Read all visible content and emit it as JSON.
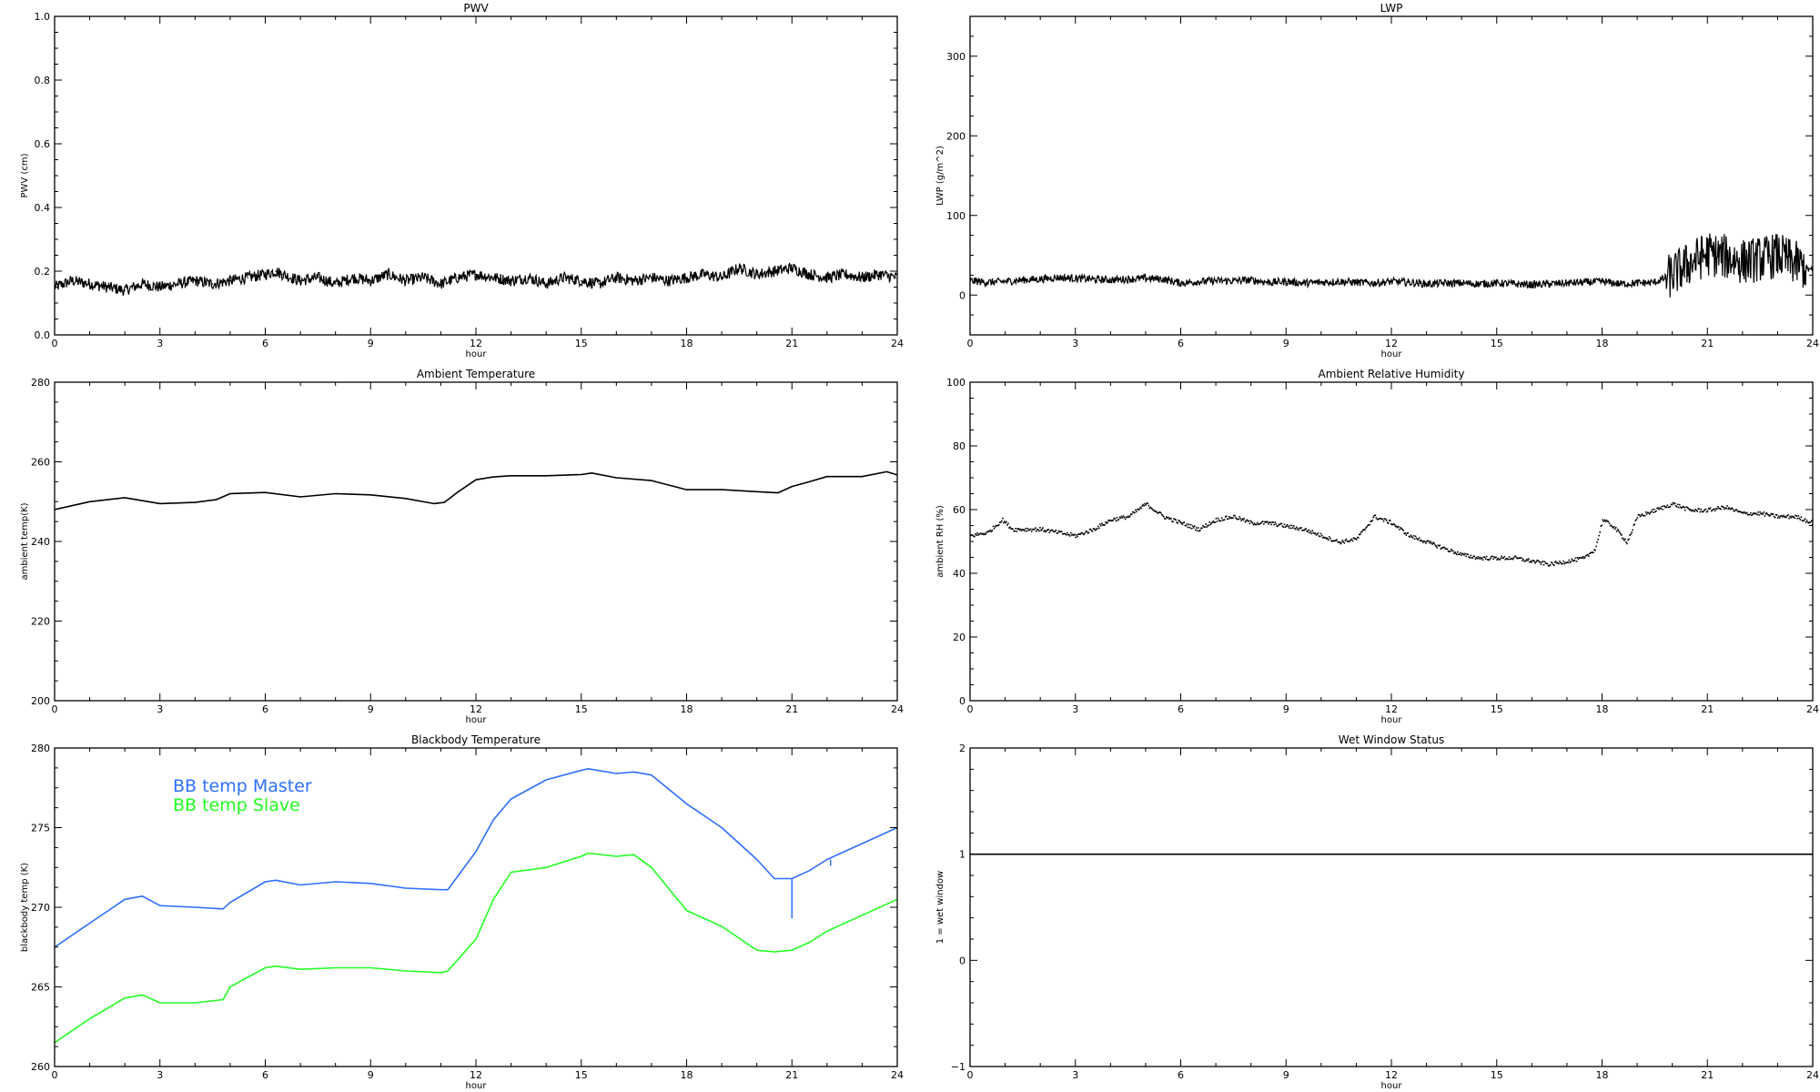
{
  "chart_data": [
    {
      "type": "line",
      "title": "PWV",
      "xlabel": "hour",
      "ylabel": "PWV (cm)",
      "xlim": [
        0,
        24
      ],
      "ylim": [
        0.0,
        1.0
      ],
      "xticks": [
        0,
        3,
        6,
        9,
        12,
        15,
        18,
        21,
        24
      ],
      "xtick_labels": [
        "0",
        "3",
        "6",
        "9",
        "12",
        "15",
        "18",
        "21",
        "24"
      ],
      "yticks": [
        0.0,
        0.2,
        0.4,
        0.6,
        0.8,
        1.0
      ],
      "ytick_labels": [
        "0.0",
        "0.2",
        "0.4",
        "0.6",
        "0.8",
        "1.0"
      ],
      "series": [
        {
          "color": "#000000",
          "style": "noisy",
          "x": [
            0,
            0.5,
            1,
            1.5,
            2,
            2.5,
            3,
            3.5,
            4,
            4.5,
            5,
            5.5,
            6,
            6.3,
            6.5,
            7,
            7.5,
            8,
            8.5,
            9,
            9.5,
            10,
            10.5,
            11,
            11.5,
            12,
            12.5,
            13,
            13.5,
            14,
            14.5,
            15,
            15.5,
            16,
            16.5,
            17,
            17.5,
            18,
            18.5,
            19,
            19.5,
            20,
            20.5,
            21,
            21.5,
            22,
            22.5,
            23,
            23.5,
            24
          ],
          "y": [
            0.15,
            0.17,
            0.16,
            0.15,
            0.14,
            0.16,
            0.15,
            0.16,
            0.17,
            0.16,
            0.17,
            0.18,
            0.19,
            0.2,
            0.19,
            0.17,
            0.18,
            0.16,
            0.18,
            0.17,
            0.19,
            0.17,
            0.18,
            0.16,
            0.18,
            0.19,
            0.18,
            0.17,
            0.18,
            0.16,
            0.18,
            0.17,
            0.16,
            0.18,
            0.17,
            0.18,
            0.17,
            0.18,
            0.19,
            0.18,
            0.21,
            0.19,
            0.2,
            0.21,
            0.19,
            0.18,
            0.19,
            0.18,
            0.19,
            0.18
          ]
        }
      ]
    },
    {
      "type": "line",
      "title": "LWP",
      "xlabel": "hour",
      "ylabel": "LWP (g/m^2)",
      "xlim": [
        0,
        24
      ],
      "ylim": [
        -50,
        350
      ],
      "xticks": [
        0,
        3,
        6,
        9,
        12,
        15,
        18,
        21,
        24
      ],
      "xtick_labels": [
        "0",
        "3",
        "6",
        "9",
        "12",
        "15",
        "18",
        "21",
        "24"
      ],
      "yticks": [
        0,
        100,
        200,
        300
      ],
      "ytick_labels": [
        "0",
        "100",
        "200",
        "300"
      ],
      "series": [
        {
          "color": "#000000",
          "style": "noisy",
          "x": [
            0,
            0.5,
            1,
            1.5,
            2,
            2.5,
            3,
            3.5,
            4,
            4.5,
            5,
            5.5,
            6,
            6.5,
            7,
            7.5,
            8,
            8.5,
            9,
            9.5,
            10,
            10.5,
            11,
            11.5,
            12,
            12.5,
            13,
            13.5,
            14,
            14.5,
            15,
            15.5,
            16,
            16.5,
            17,
            17.5,
            18,
            18.5,
            19,
            19.5,
            20,
            20.5,
            21,
            21.5,
            22,
            22.5,
            23,
            23.5,
            24
          ],
          "y": [
            18,
            16,
            17,
            19,
            20,
            22,
            21,
            20,
            19,
            20,
            21,
            20,
            15,
            17,
            18,
            18,
            19,
            16,
            17,
            15,
            16,
            17,
            16,
            15,
            17,
            16,
            14,
            15,
            15,
            14,
            15,
            14,
            13,
            14,
            15,
            16,
            17,
            14,
            15,
            16,
            25,
            40,
            52,
            48,
            42,
            45,
            50,
            40,
            30
          ]
        }
      ]
    },
    {
      "type": "line",
      "title": "Ambient Temperature",
      "xlabel": "hour",
      "ylabel": "ambient temp(K)",
      "xlim": [
        0,
        24
      ],
      "ylim": [
        200,
        280
      ],
      "xticks": [
        0,
        3,
        6,
        9,
        12,
        15,
        18,
        21,
        24
      ],
      "xtick_labels": [
        "0",
        "3",
        "6",
        "9",
        "12",
        "15",
        "18",
        "21",
        "24"
      ],
      "yticks": [
        200,
        220,
        240,
        260,
        280
      ],
      "ytick_labels": [
        "200",
        "220",
        "240",
        "260",
        "280"
      ],
      "series": [
        {
          "color": "#000000",
          "style": "line",
          "x": [
            0,
            1,
            2,
            3,
            4,
            4.6,
            5,
            6,
            7,
            8,
            9,
            10,
            10.8,
            11.1,
            11.5,
            12,
            12.5,
            13,
            14,
            15,
            15.3,
            16,
            17,
            18,
            19,
            20,
            20.6,
            21,
            21.5,
            22,
            23,
            23.7,
            24
          ],
          "y": [
            248,
            250,
            251,
            249.5,
            249.8,
            250.5,
            252,
            252.3,
            251.2,
            252,
            251.7,
            250.8,
            249.5,
            249.8,
            252.5,
            255.5,
            256.2,
            256.5,
            256.5,
            256.8,
            257.2,
            256,
            255.3,
            253,
            253,
            252.5,
            252.2,
            253.8,
            255,
            256.3,
            256.3,
            257.5,
            256.7
          ]
        }
      ]
    },
    {
      "type": "scatter",
      "title": "Ambient Relative Humidity",
      "xlabel": "hour",
      "ylabel": "ambient RH (%)",
      "xlim": [
        0,
        24
      ],
      "ylim": [
        0,
        100
      ],
      "xticks": [
        0,
        3,
        6,
        9,
        12,
        15,
        18,
        21,
        24
      ],
      "xtick_labels": [
        "0",
        "3",
        "6",
        "9",
        "12",
        "15",
        "18",
        "21",
        "24"
      ],
      "yticks": [
        0,
        20,
        40,
        60,
        80,
        100
      ],
      "ytick_labels": [
        "0",
        "20",
        "40",
        "60",
        "80",
        "100"
      ],
      "series": [
        {
          "color": "#000000",
          "style": "dots",
          "x": [
            0,
            0.5,
            0.9,
            1.2,
            2,
            2.5,
            3,
            3.5,
            4,
            4.5,
            5,
            5.5,
            6,
            6.5,
            7,
            7.5,
            8,
            8.5,
            9,
            9.5,
            10,
            10.5,
            11,
            11.5,
            12,
            12.5,
            13,
            13.5,
            14,
            14.5,
            15,
            15.5,
            16,
            16.5,
            17,
            17.5,
            17.8,
            18,
            18.3,
            18.7,
            19,
            19.5,
            20,
            20.5,
            21,
            21.5,
            22,
            22.5,
            23,
            23.5,
            24
          ],
          "y": [
            52,
            53,
            57,
            54,
            54,
            53,
            52,
            54,
            57,
            58,
            62,
            58,
            56,
            54,
            57,
            58,
            56,
            56,
            55,
            54,
            52,
            50,
            51,
            58,
            56,
            52,
            50,
            48,
            46,
            45,
            45,
            45,
            44,
            43,
            44,
            45,
            48,
            57,
            55,
            50,
            58,
            60,
            62,
            60,
            60,
            61,
            59,
            59,
            58,
            58,
            56
          ]
        }
      ]
    },
    {
      "type": "line",
      "title": "Blackbody Temperature",
      "xlabel": "hour",
      "ylabel": "blackbody temp (K)",
      "xlim": [
        0,
        24
      ],
      "ylim": [
        260,
        280
      ],
      "xticks": [
        0,
        3,
        6,
        9,
        12,
        15,
        18,
        21,
        24
      ],
      "xtick_labels": [
        "0",
        "3",
        "6",
        "9",
        "12",
        "15",
        "18",
        "21",
        "24"
      ],
      "yticks": [
        260,
        265,
        270,
        275,
        280
      ],
      "ytick_labels": [
        "260",
        "265",
        "270",
        "275",
        "280"
      ],
      "legend": [
        "BB temp Master",
        "BB temp Slave"
      ],
      "legend_placement": "top-left",
      "series": [
        {
          "name": "BB temp Master",
          "color": "#2e6fff",
          "style": "line",
          "x": [
            0,
            1,
            2,
            2.5,
            3,
            4,
            4.8,
            5,
            6,
            6.3,
            7,
            8,
            9,
            10,
            11,
            11.2,
            12,
            12.5,
            13,
            14,
            15,
            15.2,
            16,
            16.5,
            17,
            18,
            19,
            20,
            20.5,
            21,
            21.5,
            22,
            23,
            24
          ],
          "y": [
            267.5,
            269,
            270.5,
            270.7,
            270.1,
            270,
            269.9,
            270.3,
            271.6,
            271.7,
            271.4,
            271.6,
            271.5,
            271.2,
            271.1,
            271.1,
            273.5,
            275.5,
            276.8,
            278,
            278.6,
            278.7,
            278.4,
            278.5,
            278.3,
            276.5,
            275,
            273,
            271.8,
            271.8,
            272.3,
            273,
            274,
            275
          ],
          "spikes": [
            {
              "x": 21.0,
              "y_from": 271.8,
              "y_to": 269.3
            },
            {
              "x": 22.1,
              "y_from": 273.0,
              "y_to": 272.6
            }
          ]
        },
        {
          "name": "BB temp Slave",
          "color": "#22ff22",
          "style": "line",
          "x": [
            0,
            1,
            2,
            2.5,
            3,
            4,
            4.8,
            5,
            6,
            6.3,
            7,
            8,
            9,
            10,
            11,
            11.2,
            12,
            12.5,
            13,
            14,
            15,
            15.2,
            16,
            16.5,
            17,
            18,
            19,
            20,
            20.5,
            21,
            21.5,
            22,
            23,
            24
          ],
          "y": [
            261.5,
            263,
            264.3,
            264.5,
            264,
            264,
            264.2,
            265,
            266.2,
            266.3,
            266.1,
            266.2,
            266.2,
            266,
            265.9,
            266,
            268,
            270.5,
            272.2,
            272.5,
            273.2,
            273.4,
            273.2,
            273.3,
            272.5,
            269.8,
            268.8,
            267.3,
            267.2,
            267.3,
            267.8,
            268.5,
            269.5,
            270.5
          ]
        }
      ]
    },
    {
      "type": "line",
      "title": "Wet Window Status",
      "xlabel": "hour",
      "ylabel": "1 = wet window",
      "xlim": [
        0,
        24
      ],
      "ylim": [
        -1,
        2
      ],
      "xticks": [
        0,
        3,
        6,
        9,
        12,
        15,
        18,
        21,
        24
      ],
      "xtick_labels": [
        "0",
        "3",
        "6",
        "9",
        "12",
        "15",
        "18",
        "21",
        "24"
      ],
      "yticks": [
        -1,
        0,
        1,
        2
      ],
      "ytick_labels": [
        "−1",
        "0",
        "1",
        "2"
      ],
      "series": [
        {
          "color": "#000000",
          "style": "line",
          "x": [
            0,
            24
          ],
          "y": [
            1,
            1
          ]
        }
      ]
    }
  ]
}
